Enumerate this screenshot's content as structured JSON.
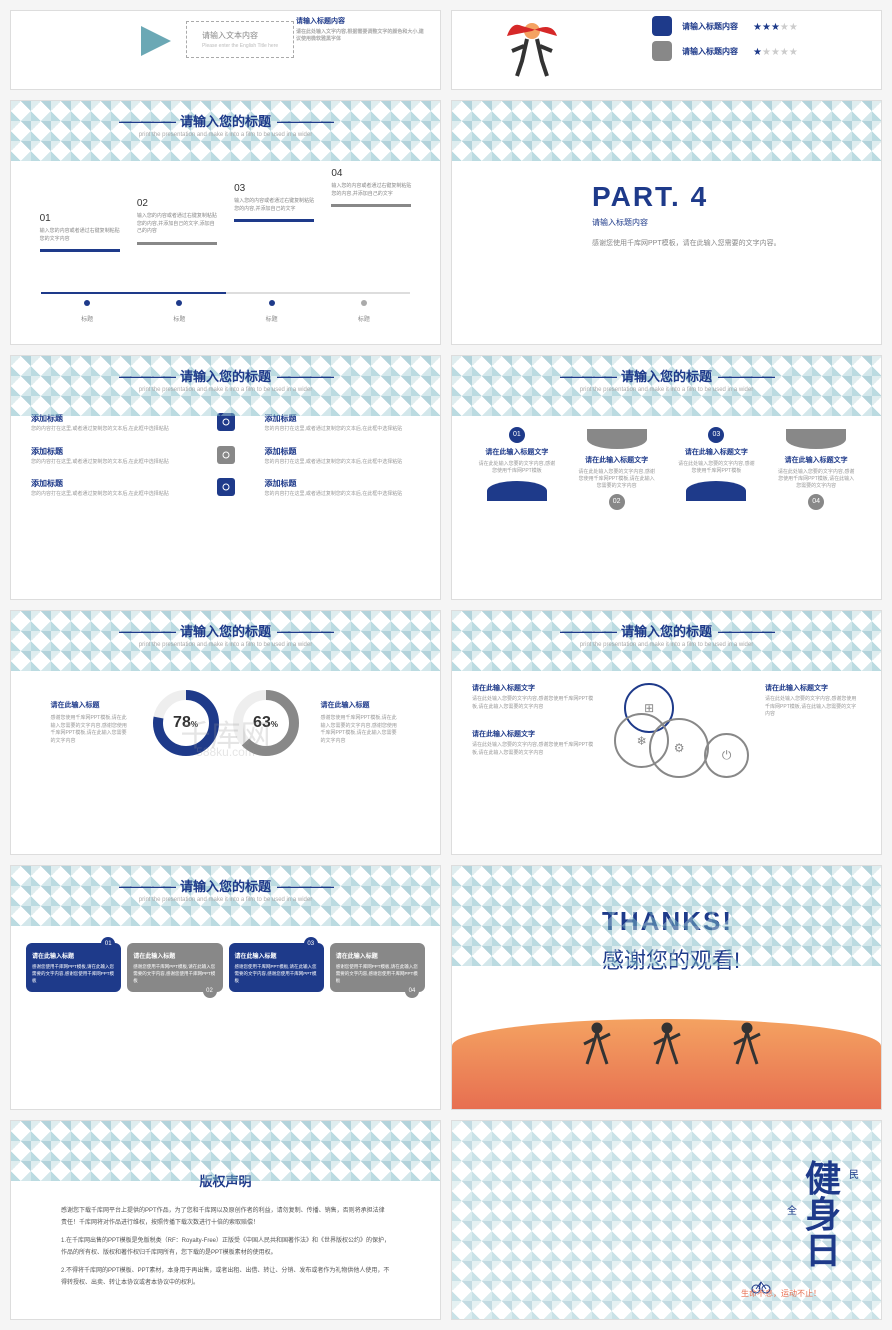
{
  "common": {
    "title": "请输入您的标题",
    "subtitle": "print the presentation and make it into a film to be used in a wider",
    "titleContent": "请输入标题内容"
  },
  "colors": {
    "primary": "#1e3a8a",
    "gray": "#888888",
    "lightGray": "#cccccc",
    "teal": "#7ab8c4",
    "orange": "#e76f51"
  },
  "watermark": {
    "main": "千库网",
    "sub": "588ku.com"
  },
  "s1": {
    "boxText": "请输入文本内容",
    "boxSub": "Please enter the English Title here",
    "rightTitle": "请输入标题内容",
    "rightDesc": "请在此处输入文字内容,根据需要调整文字的颜色和大小,建议使用微软雅黑字体"
  },
  "s2": {
    "rows": [
      {
        "color": "#1e3a8a",
        "label": "请输入标题内容",
        "stars": 3
      },
      {
        "color": "#888888",
        "label": "请输入标题内容",
        "stars": 1
      }
    ]
  },
  "s3": {
    "steps": [
      {
        "num": "01",
        "text": "输入您的内容或者通过右键复制粘贴您的文字内容",
        "blue": true
      },
      {
        "num": "02",
        "text": "输入您的内容或者通过右键复制粘贴您的内容,并添加自己的文字,添加自己的内容",
        "blue": false
      },
      {
        "num": "03",
        "text": "输入您的内容或者通过右键复制粘贴您的内容,并添加自己的文字",
        "blue": true
      },
      {
        "num": "04",
        "text": "输入您的内容或者通过右键复制粘贴您的内容,并添加自己的文字",
        "blue": false
      }
    ],
    "dotLabel": "标题"
  },
  "s4": {
    "title": "PART. 4",
    "sub": "请输入标题内容",
    "desc": "感谢您使用千库网PPT模板，请在此输入您需要的文字内容。"
  },
  "s5": {
    "rows": [
      {
        "leftH": "添加标题",
        "leftD": "您的内容打在这里,或者通过复制您的文本后,在此框中选择粘贴",
        "rightH": "添加标题",
        "rightD": "您的内容打在这里,或者通过复制您的文本后,在此框中选择粘贴",
        "iconBlue": true
      },
      {
        "leftH": "添加标题",
        "leftD": "您的内容打在这里,或者通过复制您的文本后,在此框中选择粘贴",
        "rightH": "添加标题",
        "rightD": "您的内容打在这里,或者通过复制您的文本后,在此框中选择粘贴",
        "iconBlue": false
      },
      {
        "leftH": "添加标题",
        "leftD": "您的内容打在这里,或者通过复制您的文本后,在此框中选择粘贴",
        "rightH": "添加标题",
        "rightD": "您的内容打在这里,或者通过复制您的文本后,在此框中选择粘贴",
        "iconBlue": true
      }
    ]
  },
  "s6": {
    "items": [
      {
        "num": "01",
        "h": "请在此输入标题文字",
        "d": "请在此处输入您要的文字内容,感谢您使用千库网PPT模板",
        "blue": true,
        "up": true
      },
      {
        "num": "02",
        "h": "请在此输入标题文字",
        "d": "请在此处输入您要的文字内容,感谢您使用千库网PPT模板,请在此输入您需要的文字内容",
        "blue": false,
        "up": false
      },
      {
        "num": "03",
        "h": "请在此输入标题文字",
        "d": "请在此处输入您要的文字内容,感谢您使用千库网PPT模板",
        "blue": true,
        "up": true
      },
      {
        "num": "04",
        "h": "请在此输入标题文字",
        "d": "请在此处输入您要的文字内容,感谢您使用千库网PPT模板,请在此输入您需要的文字内容",
        "blue": false,
        "up": false
      }
    ]
  },
  "s7": {
    "leftH": "请在此输入标题",
    "leftD": "感谢您使用千库网PPT模板,请在此输入您需要的文字内容,感谢您使用千库网PPT模板,请在此输入您需要的文字内容",
    "donuts": [
      {
        "value": 78,
        "color": "#1e3a8a"
      },
      {
        "value": 63,
        "color": "#888888"
      }
    ],
    "rightH": "请在此输入标题",
    "rightD": "感谢您使用千库网PPT模板,请在此输入您需要的文字内容,感谢您使用千库网PPT模板,请在此输入您需要的文字内容"
  },
  "s8": {
    "blocks": [
      {
        "h": "请在此输入标题文字",
        "d": "请在此处输入您要的文字内容,感谢您使用千库网PPT模板,请在此输入您需要的文字内容"
      },
      {
        "h": "请在此输入标题文字",
        "d": "请在此处输入您要的文字内容,感谢您使用千库网PPT模板,请在此输入您需要的文字内容"
      }
    ],
    "rightBlocks": [
      {
        "h": "请在此输入标题文字",
        "d": "请在此处输入您要的文字内容,感谢您使用千库网PPT模板,请在此输入您需要的文字内容"
      }
    ],
    "icons": [
      "⊞",
      "❄",
      "⚙",
      "⏻"
    ]
  },
  "s9": {
    "cards": [
      {
        "num": "01",
        "h": "请在此输入标题",
        "d": "感谢您使用千库网PPT模板,请在此输入您需要的文字内容,感谢您使用千库网PPT模板",
        "blue": true
      },
      {
        "num": "02",
        "h": "请在此输入标题",
        "d": "感谢您使用千库网PPT模板,请在此输入您需要的文字内容,感谢您使用千库网PPT模板",
        "blue": false
      },
      {
        "num": "03",
        "h": "请在此输入标题",
        "d": "感谢您使用千库网PPT模板,请在此输入您需要的文字内容,感谢您使用千库网PPT模板",
        "blue": true
      },
      {
        "num": "04",
        "h": "请在此输入标题",
        "d": "感谢您使用千库网PPT模板,请在此输入您需要的文字内容,感谢您使用千库网PPT模板",
        "blue": false
      }
    ]
  },
  "s10": {
    "en": "THANKS!",
    "cn": "感谢您的观看!"
  },
  "s11": {
    "title": "版权声明",
    "p1": "感谢您下载千库网平台上提供的PPT作品，为了您和千库网以及原创作者的利益，请勿复制、传播、销售，否则将承担法律责任！千库网将对作品进行维权，按照传播下载次数进行十倍的索取赔偿！",
    "p2": "1.在千库网出售的PPT模板是免版税类（RF：Royalty-Free）正版受《中国人民共和国著作法》和《世界版权公约》的保护，作品的所有权、版权和著作权归千库网所有，您下载的是PPT模板素材的使用权。",
    "p3": "2.不得将千库网的PPT模板、PPT素材，本身用于再出售，或者出租、出借、转让、分销、发布或者作为礼物供他人使用，不得转授权、出卖、转让本协议或者本协议中的权利。"
  },
  "s12": {
    "chars": [
      "健",
      "身",
      "日"
    ],
    "small1": "民",
    "small2": "全",
    "slogan": "生命不息，运动不止！"
  }
}
